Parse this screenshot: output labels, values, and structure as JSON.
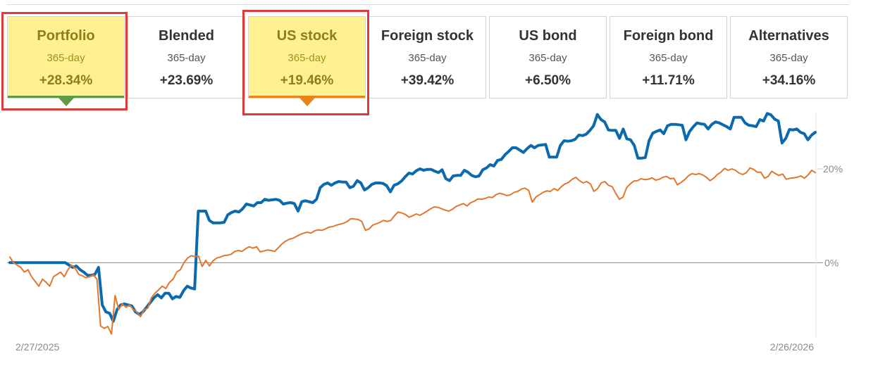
{
  "tabs": [
    {
      "title": "Portfolio",
      "period": "365-day",
      "value": "+28.34%",
      "highlight": true,
      "accent": "#5f9a45"
    },
    {
      "title": "Blended",
      "period": "365-day",
      "value": "+23.69%",
      "highlight": false
    },
    {
      "title": "US stock",
      "period": "365-day",
      "value": "+19.46%",
      "highlight": true,
      "accent": "#e8831a"
    },
    {
      "title": "Foreign stock",
      "period": "365-day",
      "value": "+39.42%",
      "highlight": false
    },
    {
      "title": "US bond",
      "period": "365-day",
      "value": "+6.50%",
      "highlight": false
    },
    {
      "title": "Foreign bond",
      "period": "365-day",
      "value": "+11.71%",
      "highlight": false
    },
    {
      "title": "Alternatives",
      "period": "365-day",
      "value": "+34.16%",
      "highlight": false
    }
  ],
  "chart_data": {
    "type": "line",
    "x_start_label": "2/27/2025",
    "x_end_label": "2/26/2026",
    "y_ticks": [
      {
        "value": 0,
        "label": "0%"
      },
      {
        "value": 20,
        "label": "20%"
      }
    ],
    "ylim": [
      -16,
      32
    ],
    "grid": false,
    "series": [
      {
        "color": "#0b6aad",
        "values": [
          0,
          0,
          0,
          0,
          0,
          0,
          0,
          0,
          0,
          0,
          0,
          0,
          0,
          0,
          0,
          0,
          -0.5,
          -1,
          -0.7,
          -1.5,
          -2,
          -2.7,
          -2.7,
          -2.5,
          -1,
          -9,
          -10.5,
          -10.8,
          -12.5,
          -10,
          -9,
          -8.8,
          -9,
          -9.2,
          -10.5,
          -11,
          -10.5,
          -9.5,
          -8.5,
          -7.5,
          -6.8,
          -7.5,
          -6.5,
          -6.5,
          -7.7,
          -7.2,
          -7.4,
          -6,
          -5,
          -5.4,
          -5.6,
          11,
          11,
          11,
          9,
          8.5,
          8.5,
          8.5,
          8.6,
          10.2,
          10.7,
          11,
          10.8,
          11.5,
          12.5,
          12.3,
          12.1,
          12.8,
          12.8,
          13.5,
          13.3,
          13.4,
          13.5,
          13.3,
          12.5,
          12.7,
          12.8,
          12.6,
          11,
          13,
          13.2,
          13,
          12.8,
          13.5,
          16,
          16.7,
          17,
          16.5,
          17,
          17.3,
          17.2,
          17.2,
          16,
          16.3,
          17.5,
          17,
          15.5,
          16,
          16.7,
          17,
          17,
          16.9,
          16.4,
          15.1,
          16.5,
          16.8,
          17.4,
          18.3,
          19.1,
          18.9,
          19.6,
          20,
          19.7,
          19.9,
          19.9,
          19.5,
          19.2,
          19.8,
          17.9,
          17.5,
          18.5,
          18.6,
          18.6,
          19.7,
          19.3,
          18.6,
          18.3,
          18.5,
          19.8,
          20.2,
          20.9,
          20.6,
          21.8,
          22,
          23,
          23.7,
          24.5,
          24.5,
          24,
          23.5,
          24.3,
          25,
          24.5,
          25,
          25.1,
          25.2,
          22.5,
          22.5,
          22.5,
          25,
          26,
          25.9,
          26,
          26.3,
          27.2,
          27.1,
          27.4,
          28.2,
          29.2,
          31.6,
          30.5,
          30,
          28.3,
          28.2,
          28.2,
          26.5,
          28.5,
          26.4,
          26.2,
          25,
          22.3,
          22.3,
          22.4,
          26,
          27.6,
          28,
          28.3,
          27.5,
          29.2,
          29.5,
          29.5,
          29.4,
          29.3,
          26.2,
          28,
          29,
          29.8,
          29.6,
          29.5,
          28.5,
          29.5,
          30,
          29.8,
          29.4,
          29,
          28.5,
          31,
          31,
          31,
          29.8,
          29.3,
          29.2,
          29,
          30.5,
          30.2,
          31.8,
          31.5,
          30.6,
          30.2,
          25.5,
          26.5,
          28.4,
          28.3,
          28.5,
          27.8,
          27.5,
          26.2,
          27.2,
          27.8
        ]
      },
      {
        "color": "#e2762b",
        "values": [
          1.2,
          0,
          -0.5,
          -1,
          -2,
          -1.5,
          -3,
          -4,
          -5,
          -3.5,
          -4.2,
          -5,
          -3,
          -2.5,
          -2,
          -3,
          -1.5,
          -0.5,
          -1.2,
          -2.5,
          -2.8,
          -3.2,
          -3,
          -2.6,
          -3.5,
          -13.5,
          -14,
          -13.6,
          -15.2,
          -7,
          -10,
          -8.8,
          -9.5,
          -9,
          -10,
          -10.5,
          -11.5,
          -10,
          -9.7,
          -7.5,
          -6.5,
          -5.8,
          -5,
          -5.5,
          -4.2,
          -3.5,
          -2,
          -1.5,
          0,
          1,
          1.5,
          1.3,
          1.4,
          -0.8,
          0.5,
          -0.7,
          0.4,
          1,
          1.2,
          1.5,
          1.6,
          1.8,
          2.4,
          2.6,
          2.4,
          3,
          3.4,
          3.1,
          3.4,
          2.3,
          2.5,
          2.7,
          2.6,
          2.4,
          3.2,
          4,
          4.6,
          5,
          5.2,
          5.6,
          6,
          6.3,
          6.5,
          6.3,
          6.8,
          7,
          6.9,
          7.2,
          7.6,
          7.7,
          8,
          8.2,
          8.4,
          8.8,
          9.4,
          9.3,
          9.2,
          8.8,
          6.9,
          7.2,
          8,
          8.3,
          8.6,
          9,
          8.8,
          9,
          10,
          10.8,
          10.6,
          10.3,
          9.7,
          10,
          10.4,
          10.1,
          10.5,
          11,
          11.5,
          11.9,
          11.8,
          11.5,
          11.2,
          11,
          11.4,
          12,
          12.3,
          12.6,
          12.1,
          12.8,
          13.1,
          13.6,
          13.5,
          13.7,
          14,
          13.9,
          14.5,
          14.8,
          14.6,
          14.3,
          14.5,
          15,
          15.2,
          15.7,
          15.9,
          15.4,
          12.9,
          14,
          14.5,
          15,
          15.3,
          15.2,
          15.8,
          15.4,
          16.2,
          16.8,
          17.1,
          17.8,
          18.2,
          17.5,
          17,
          17.3,
          16.8,
          15.2,
          15.8,
          17,
          17.3,
          16.5,
          16.2,
          14.8,
          13.5,
          14,
          16,
          16.8,
          17.4,
          17.5,
          17.9,
          17.7,
          17.8,
          18.1,
          17.6,
          17.8,
          18.2,
          18.4,
          17.9,
          18,
          16.6,
          17.1,
          17.7,
          18.5,
          19,
          18.8,
          19,
          18.7,
          18.2,
          17.5,
          18,
          18.8,
          19.3,
          20.1,
          19.7,
          20,
          19.7,
          19.1,
          18.8,
          19.2,
          20.2,
          19.9,
          19.3,
          19.3,
          18,
          18.4,
          19.5,
          19,
          18.6,
          18.9,
          17.8,
          18,
          18.1,
          18.2,
          18.5,
          18,
          18.7,
          19.7,
          19.2
        ]
      }
    ]
  }
}
